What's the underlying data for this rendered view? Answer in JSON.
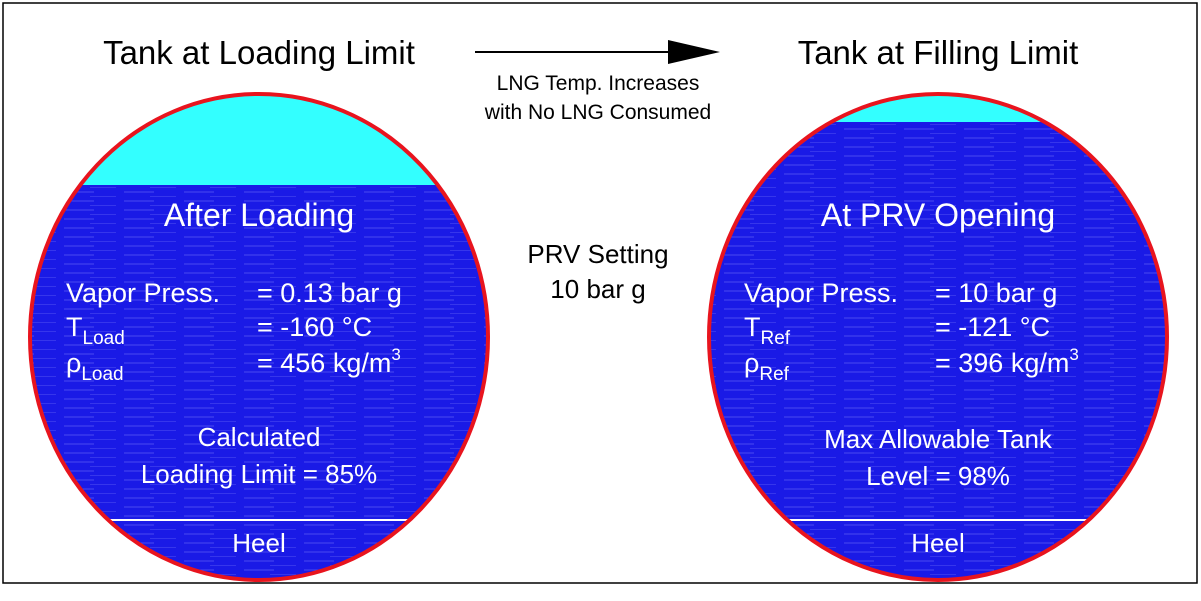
{
  "colors": {
    "liquid": "#1a1ae6",
    "vapor": "#33ffff",
    "shell": "#e8141e",
    "text_on_liquid": "#ffffff"
  },
  "left": {
    "title": "Tank at Loading Limit",
    "heading": "After Loading",
    "rows": [
      {
        "label": "Vapor Press.",
        "sub": "",
        "value": "= 0.13 bar g",
        "sup": ""
      },
      {
        "label": "T",
        "sub": "Load",
        "value": "= -160 °C",
        "sup": ""
      },
      {
        "label": "ρ",
        "sub": "Load",
        "value": "= 456 kg/m",
        "sup": "3"
      }
    ],
    "note_line1": "Calculated",
    "note_line2": "Loading Limit = 85%",
    "heel": "Heel",
    "fill_percent": 85
  },
  "middle": {
    "arrow_line1": "LNG Temp. Increases",
    "arrow_line2": "with No LNG Consumed",
    "prv_line1": "PRV Setting",
    "prv_line2": "10 bar g"
  },
  "right": {
    "title": "Tank at Filling Limit",
    "heading": "At PRV Opening",
    "rows": [
      {
        "label": "Vapor Press.",
        "sub": "",
        "value": "= 10 bar g",
        "sup": ""
      },
      {
        "label": "T",
        "sub": "Ref",
        "value": "= -121 °C",
        "sup": ""
      },
      {
        "label": "ρ",
        "sub": "Ref",
        "value": "= 396 kg/m",
        "sup": "3"
      }
    ],
    "note_line1": "Max Allowable Tank",
    "note_line2": "Level = 98%",
    "heel": "Heel",
    "fill_percent": 98
  }
}
